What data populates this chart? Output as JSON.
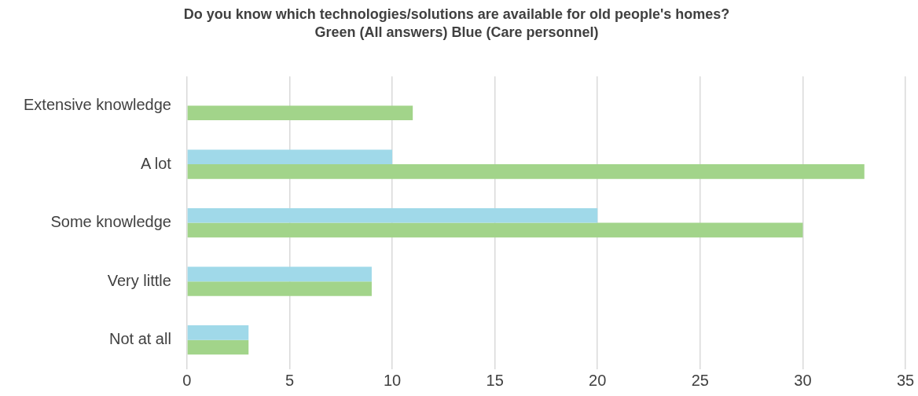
{
  "chart_data": {
    "type": "bar",
    "orientation": "horizontal",
    "title": "Do you know which technologies/solutions are available for old people's homes?",
    "subtitle": "Green (All answers) Blue (Care personnel)",
    "categories": [
      "Extensive knowledge",
      "A lot",
      "Some knowledge",
      "Very little",
      "Not at all"
    ],
    "series": [
      {
        "color": "#a0d9e9",
        "values": [
          null,
          10,
          20,
          9,
          3
        ]
      },
      {
        "color": "#a2d48a",
        "values": [
          11,
          33,
          30,
          9,
          3
        ]
      }
    ],
    "xlim": [
      0,
      35
    ],
    "xticks": [
      0,
      5,
      10,
      15,
      20,
      25,
      30,
      35
    ],
    "grid": "x",
    "legend": false
  }
}
